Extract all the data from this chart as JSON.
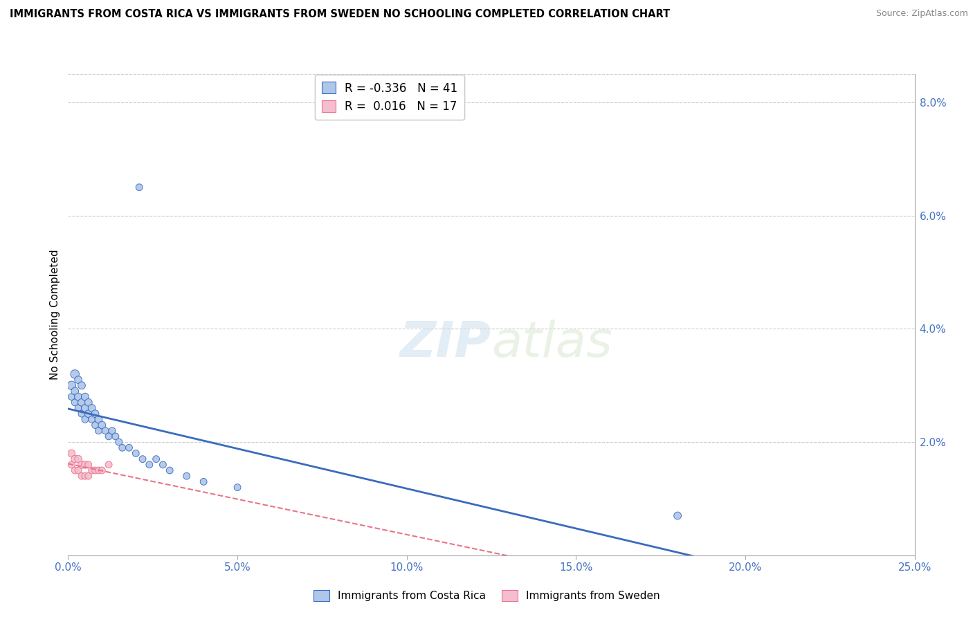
{
  "title": "IMMIGRANTS FROM COSTA RICA VS IMMIGRANTS FROM SWEDEN NO SCHOOLING COMPLETED CORRELATION CHART",
  "source": "Source: ZipAtlas.com",
  "ylabel": "No Schooling Completed",
  "right_yticks": [
    "8.0%",
    "6.0%",
    "4.0%",
    "2.0%"
  ],
  "right_ytick_vals": [
    0.08,
    0.06,
    0.04,
    0.02
  ],
  "legend1_r": "-0.336",
  "legend1_n": "41",
  "legend2_r": "0.016",
  "legend2_n": "17",
  "blue_color": "#aec6e8",
  "pink_color": "#f5bdd0",
  "blue_line_color": "#3a6bbf",
  "pink_line_color": "#e8758a",
  "costa_rica_x": [
    0.001,
    0.001,
    0.002,
    0.002,
    0.002,
    0.003,
    0.003,
    0.003,
    0.004,
    0.004,
    0.004,
    0.005,
    0.005,
    0.005,
    0.006,
    0.006,
    0.007,
    0.007,
    0.008,
    0.008,
    0.009,
    0.009,
    0.01,
    0.011,
    0.012,
    0.013,
    0.014,
    0.015,
    0.016,
    0.018,
    0.02,
    0.022,
    0.024,
    0.026,
    0.028,
    0.03,
    0.035,
    0.04,
    0.05,
    0.18,
    0.021
  ],
  "costa_rica_y": [
    0.03,
    0.028,
    0.032,
    0.029,
    0.027,
    0.031,
    0.028,
    0.026,
    0.03,
    0.027,
    0.025,
    0.028,
    0.026,
    0.024,
    0.027,
    0.025,
    0.026,
    0.024,
    0.025,
    0.023,
    0.024,
    0.022,
    0.023,
    0.022,
    0.021,
    0.022,
    0.021,
    0.02,
    0.019,
    0.019,
    0.018,
    0.017,
    0.016,
    0.017,
    0.016,
    0.015,
    0.014,
    0.013,
    0.012,
    0.007,
    0.065
  ],
  "costa_rica_sizes": [
    80,
    50,
    80,
    60,
    50,
    60,
    60,
    50,
    60,
    60,
    50,
    60,
    60,
    50,
    60,
    60,
    60,
    50,
    60,
    50,
    60,
    50,
    60,
    50,
    50,
    50,
    50,
    50,
    50,
    50,
    50,
    50,
    50,
    50,
    50,
    50,
    50,
    50,
    50,
    60,
    50
  ],
  "sweden_x": [
    0.001,
    0.001,
    0.002,
    0.002,
    0.003,
    0.003,
    0.004,
    0.004,
    0.005,
    0.005,
    0.006,
    0.006,
    0.007,
    0.008,
    0.009,
    0.01,
    0.012
  ],
  "sweden_y": [
    0.018,
    0.016,
    0.017,
    0.015,
    0.017,
    0.015,
    0.016,
    0.014,
    0.016,
    0.014,
    0.016,
    0.014,
    0.015,
    0.015,
    0.015,
    0.015,
    0.016
  ],
  "sweden_sizes": [
    60,
    50,
    60,
    50,
    60,
    50,
    60,
    50,
    60,
    50,
    50,
    50,
    50,
    50,
    50,
    50,
    50
  ],
  "xmin": 0.0,
  "xmax": 0.25,
  "ymin": 0.0,
  "ymax": 0.085,
  "xticks": [
    0.0,
    0.05,
    0.1,
    0.15,
    0.2,
    0.25
  ],
  "xtick_labels": [
    "0.0%",
    "5.0%",
    "10.0%",
    "15.0%",
    "20.0%",
    "25.0%"
  ]
}
